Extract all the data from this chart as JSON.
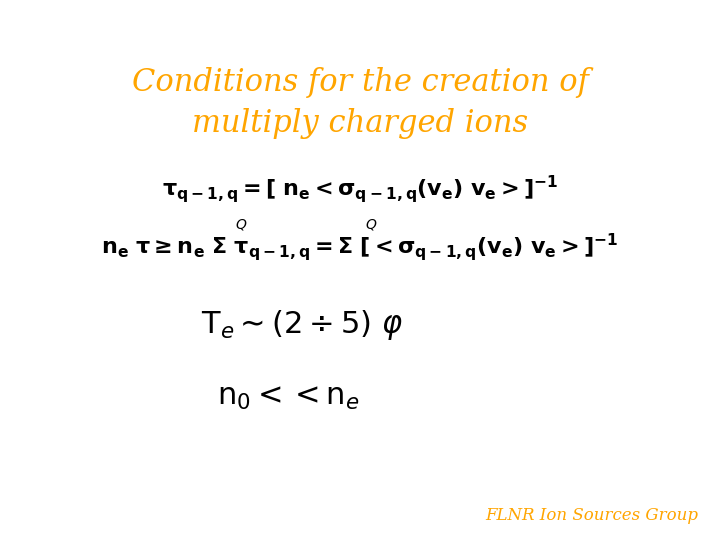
{
  "title_line1": "Conditions for the creation of",
  "title_line2": "multiply charged ions",
  "title_color": "#FFA500",
  "title_fontsize": 22,
  "eq_color": "#000000",
  "bg_color": "#ffffff",
  "eq1_fontsize": 16,
  "eq2_fontsize": 16,
  "eq3_fontsize": 22,
  "eq4_fontsize": 22,
  "q_fontsize": 10,
  "footer": "FLNR Ion Sources Group",
  "footer_color": "#FFA500",
  "footer_fontsize": 12
}
